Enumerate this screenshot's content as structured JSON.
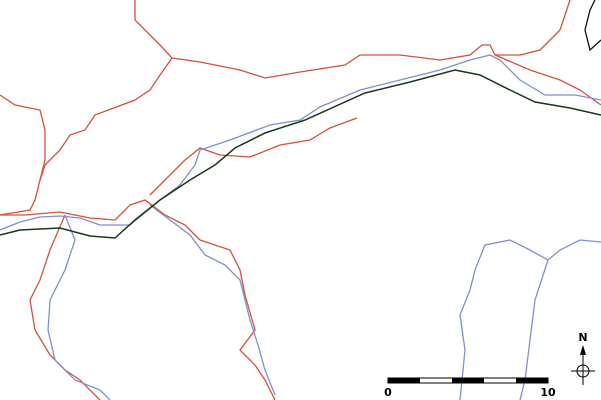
{
  "north_arrow": {
    "label": "N"
  },
  "scale_bar": {
    "labels": [
      "0",
      "10"
    ]
  }
}
